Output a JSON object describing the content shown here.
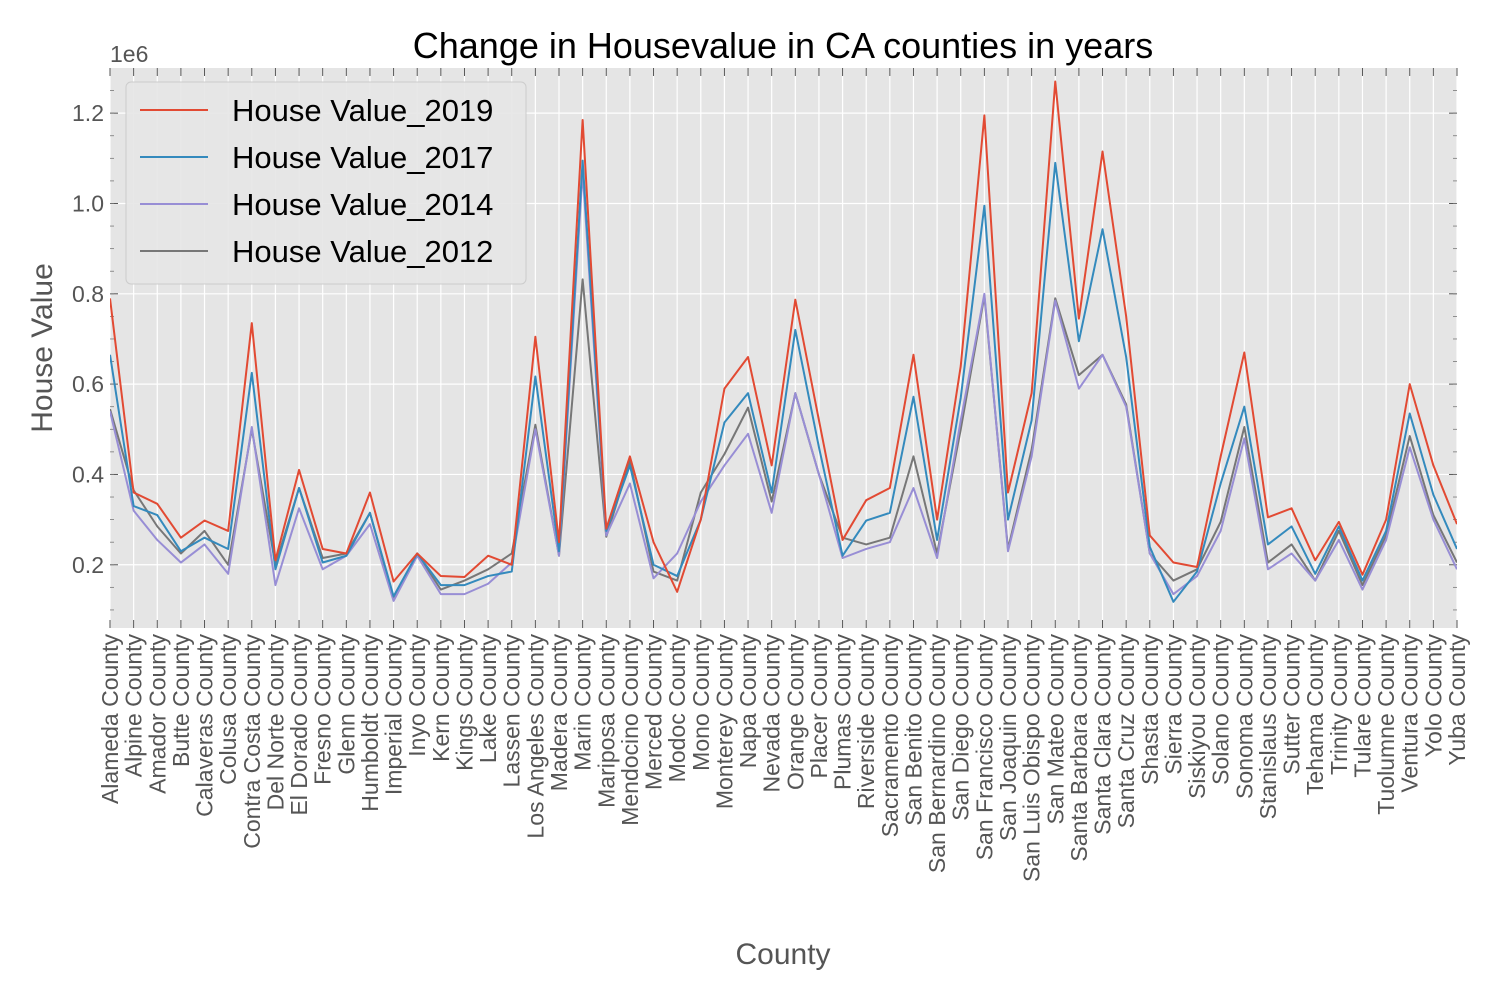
{
  "chart_data": {
    "type": "line",
    "title": "Change in Housevalue in CA counties in years",
    "xlabel": "County",
    "ylabel": "House Value",
    "y_offset_label": "1e6",
    "ylim": [
      0.06,
      1.3
    ],
    "yticks": [
      0.2,
      0.4,
      0.6,
      0.8,
      1.0,
      1.2
    ],
    "ytick_labels": [
      "0.2",
      "0.4",
      "0.6",
      "0.8",
      "1.0",
      "1.2"
    ],
    "grid": true,
    "legend_position": "top-left",
    "categories": [
      "Alameda County",
      "Alpine County",
      "Amador County",
      "Butte County",
      "Calaveras County",
      "Colusa County",
      "Contra Costa County",
      "Del Norte County",
      "El Dorado County",
      "Fresno County",
      "Glenn County",
      "Humboldt County",
      "Imperial County",
      "Inyo County",
      "Kern County",
      "Kings County",
      "Lake County",
      "Lassen County",
      "Los Angeles County",
      "Madera County",
      "Marin County",
      "Mariposa County",
      "Mendocino County",
      "Merced County",
      "Modoc County",
      "Mono County",
      "Monterey County",
      "Napa County",
      "Nevada County",
      "Orange County",
      "Placer County",
      "Plumas County",
      "Riverside County",
      "Sacramento County",
      "San Benito County",
      "San Bernardino County",
      "San Diego County",
      "San Francisco County",
      "San Joaquin County",
      "San Luis Obispo County",
      "San Mateo County",
      "Santa Barbara County",
      "Santa Clara County",
      "Santa Cruz County",
      "Shasta County",
      "Sierra County",
      "Siskiyou County",
      "Solano County",
      "Sonoma County",
      "Stanislaus County",
      "Sutter County",
      "Tehama County",
      "Trinity County",
      "Tulare County",
      "Tuolumne County",
      "Ventura County",
      "Yolo County",
      "Yuba County"
    ],
    "series": [
      {
        "name": "House Value_2019",
        "color": "#E24A33",
        "values": [
          0.79,
          0.36,
          0.335,
          0.26,
          0.298,
          0.275,
          0.735,
          0.21,
          0.41,
          0.235,
          0.225,
          0.36,
          0.163,
          0.225,
          0.175,
          0.173,
          0.22,
          0.2,
          0.705,
          0.25,
          1.185,
          0.28,
          0.44,
          0.25,
          0.14,
          0.3,
          0.59,
          0.66,
          0.42,
          0.787,
          0.52,
          0.255,
          0.343,
          0.37,
          0.665,
          0.3,
          0.64,
          1.195,
          0.36,
          0.58,
          1.27,
          0.745,
          1.115,
          0.75,
          0.265,
          0.205,
          0.195,
          0.44,
          0.67,
          0.305,
          0.325,
          0.21,
          0.295,
          0.178,
          0.3,
          0.6,
          0.42,
          0.29
        ]
      },
      {
        "name": "House Value_2017",
        "color": "#348ABD",
        "values": [
          0.665,
          0.33,
          0.31,
          0.23,
          0.26,
          0.235,
          0.625,
          0.19,
          0.37,
          0.205,
          0.22,
          0.315,
          0.13,
          0.225,
          0.155,
          0.155,
          0.175,
          0.185,
          0.617,
          0.23,
          1.095,
          0.275,
          0.42,
          0.2,
          0.175,
          0.3,
          0.515,
          0.58,
          0.36,
          0.72,
          0.46,
          0.22,
          0.298,
          0.315,
          0.572,
          0.255,
          0.57,
          0.995,
          0.3,
          0.52,
          1.09,
          0.695,
          0.943,
          0.66,
          0.24,
          0.118,
          0.185,
          0.38,
          0.55,
          0.245,
          0.285,
          0.18,
          0.285,
          0.165,
          0.275,
          0.535,
          0.355,
          0.235
        ]
      },
      {
        "name": "House Value_2014",
        "color": "#988ED5",
        "values": [
          0.54,
          0.32,
          0.255,
          0.205,
          0.245,
          0.18,
          0.505,
          0.155,
          0.325,
          0.19,
          0.22,
          0.29,
          0.12,
          0.22,
          0.135,
          0.135,
          0.158,
          0.205,
          0.5,
          0.22,
          1.07,
          0.265,
          0.38,
          0.17,
          0.225,
          0.34,
          0.42,
          0.49,
          0.315,
          0.58,
          0.4,
          0.215,
          0.235,
          0.25,
          0.37,
          0.215,
          0.52,
          0.8,
          0.23,
          0.44,
          0.785,
          0.59,
          0.665,
          0.55,
          0.225,
          0.135,
          0.175,
          0.275,
          0.48,
          0.19,
          0.225,
          0.165,
          0.255,
          0.145,
          0.255,
          0.46,
          0.3,
          0.19
        ]
      },
      {
        "name": "House Value_2012",
        "color": "#777777",
        "values": [
          0.545,
          0.365,
          0.285,
          0.225,
          0.275,
          0.2,
          0.5,
          0.2,
          0.37,
          0.215,
          0.225,
          0.315,
          0.125,
          0.225,
          0.145,
          0.165,
          0.19,
          0.225,
          0.51,
          0.22,
          0.832,
          0.262,
          0.43,
          0.185,
          0.165,
          0.36,
          0.445,
          0.548,
          0.34,
          0.58,
          0.4,
          0.26,
          0.245,
          0.26,
          0.44,
          0.225,
          0.5,
          0.795,
          0.235,
          0.455,
          0.79,
          0.62,
          0.665,
          0.555,
          0.225,
          0.165,
          0.19,
          0.295,
          0.505,
          0.205,
          0.245,
          0.165,
          0.275,
          0.155,
          0.265,
          0.485,
          0.31,
          0.205
        ]
      }
    ]
  }
}
